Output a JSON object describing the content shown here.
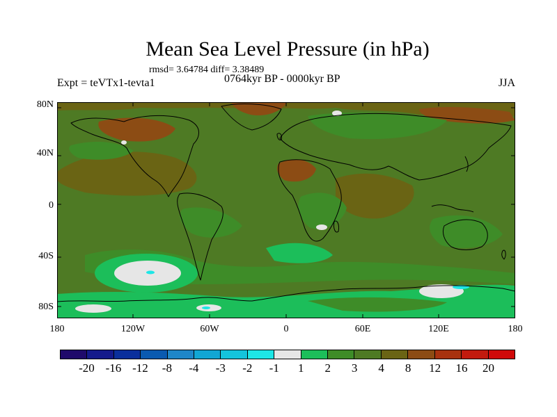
{
  "title": "Mean Sea Level Pressure (in hPa)",
  "stats": "rmsd= 3.64784 diff= 3.38489",
  "experiment": "Expt = teVTx1-tevta1",
  "period": "0764kyr BP - 0000kyr BP",
  "season": "JJA",
  "y_ticks": [
    "80N",
    "40N",
    "0",
    "40S",
    "80S"
  ],
  "x_ticks": [
    "180",
    "120W",
    "60W",
    "0",
    "60E",
    "120E",
    "180"
  ],
  "colorbar": {
    "labels": [
      "-20",
      "-16",
      "-12",
      "-8",
      "-4",
      "-3",
      "-2",
      "-1",
      "1",
      "2",
      "3",
      "4",
      "8",
      "12",
      "16",
      "20"
    ],
    "colors": [
      "#1f0a6b",
      "#141a8c",
      "#0a2f9c",
      "#0a5ab0",
      "#1f86c8",
      "#12a6d4",
      "#14c4dc",
      "#1ee6e6",
      "#e6e6e6",
      "#1cbe5a",
      "#3e8c28",
      "#4e7a24",
      "#6a6414",
      "#8c4c14",
      "#a8320f",
      "#c21a0e",
      "#d00a0a"
    ]
  },
  "map_colors": {
    "ocean_base": "#4e7a24",
    "brown": "#6a6414",
    "darkbrown": "#8c4c14",
    "green": "#3e8c28",
    "lightgreen": "#1cbe5a",
    "white": "#e6e6e6",
    "cyan": "#1ee6e6",
    "blue": "#1f86c8"
  }
}
